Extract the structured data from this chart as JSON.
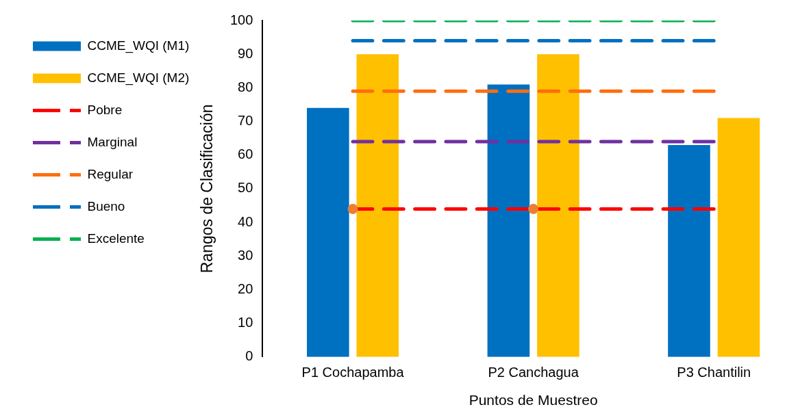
{
  "chart_data": {
    "type": "bar",
    "xlabel": "Puntos de Muestreo",
    "ylabel": "Rangos de Clasificación",
    "categories": [
      "P1 Cochapamba",
      "P2 Canchagua",
      "P3 Chantilin"
    ],
    "series": [
      {
        "name": "CCME_WQI (M1)",
        "color": "#0070c0",
        "values": [
          74,
          81,
          63
        ]
      },
      {
        "name": "CCME_WQI (M2)",
        "color": "#ffc000",
        "values": [
          90,
          90,
          71
        ]
      },
      {
        "name": "Pobre",
        "type": "line",
        "color": "#ff0000",
        "values": [
          44,
          44,
          44
        ]
      },
      {
        "name": "Marginal",
        "type": "line",
        "color": "#7030a0",
        "values": [
          64,
          64,
          64
        ]
      },
      {
        "name": "Regular",
        "type": "line",
        "color": "#ff6d0f",
        "values": [
          79,
          79,
          79
        ]
      },
      {
        "name": "Bueno",
        "type": "line",
        "color": "#0070c0",
        "values": [
          94,
          94,
          94
        ]
      },
      {
        "name": "Excelente",
        "type": "line",
        "color": "#00b050",
        "values": [
          100,
          100,
          100
        ]
      },
      {
        "type": "scatter",
        "color": "#ed7d31",
        "x": [
          "P1 Cochapamba",
          "P2 Canchagua"
        ],
        "values": [
          44,
          44
        ]
      }
    ],
    "ylim": [
      0,
      100
    ],
    "yticks": [
      0,
      10,
      20,
      30,
      40,
      50,
      60,
      70,
      80,
      90,
      100
    ],
    "grid": false,
    "legend": "left",
    "line_style": "dashed"
  }
}
